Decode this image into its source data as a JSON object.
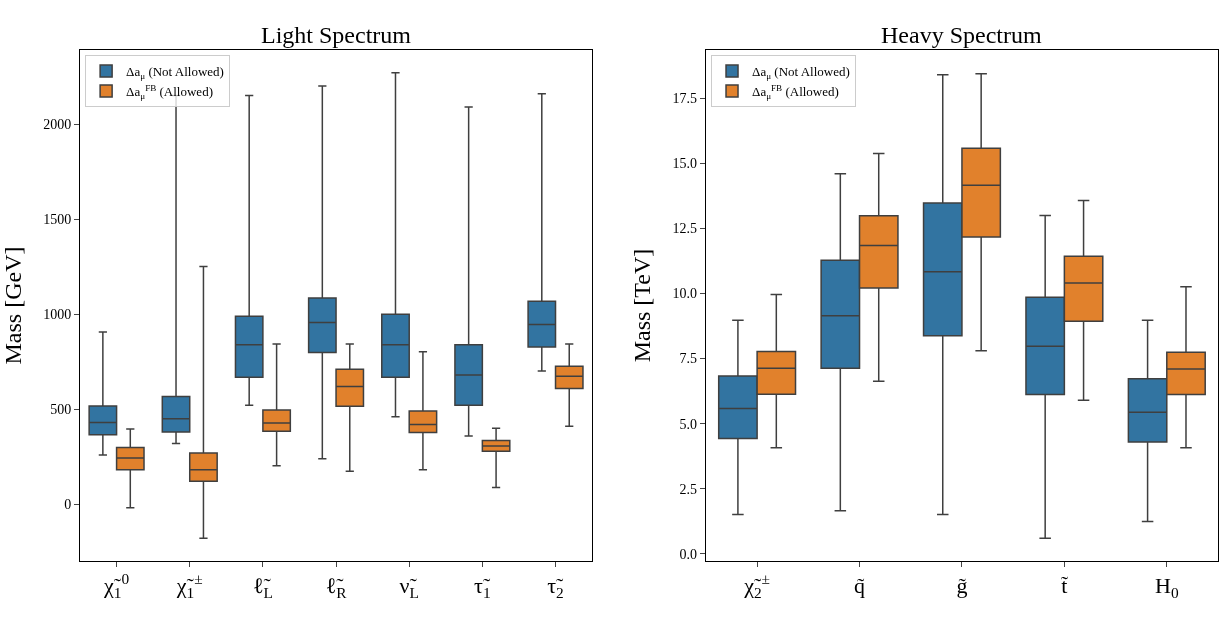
{
  "chart_data": [
    {
      "type": "box",
      "title": "Light Spectrum",
      "ylabel": "Mass [GeV]",
      "legend": "top left",
      "categories": [
        "χ̃$_{1}$$^{0}$",
        "χ̃$_{1}$$^{±}$",
        "ℓ̃$_{L}$",
        "ℓ̃$_{R}$",
        "ν̃$_{L}$",
        "τ̃$_{1}$",
        "τ̃$_{2}$"
      ],
      "ylim": [
        -300,
        2390
      ],
      "yticks": [
        0,
        500,
        1000,
        1500,
        2000
      ],
      "series": [
        {
          "name": "Δa$_{μ}$ (Not Allowed)",
          "color": "#3274a1",
          "boxes": [
            {
              "low": 258,
              "q1": 365,
              "median": 429,
              "q3": 516,
              "high": 906
            },
            {
              "low": 318,
              "q1": 379,
              "median": 449,
              "q3": 566,
              "high": 2150
            },
            {
              "low": 520,
              "q1": 667,
              "median": 838,
              "q3": 989,
              "high": 2150
            },
            {
              "low": 238,
              "q1": 798,
              "median": 955,
              "q3": 1084,
              "high": 2200
            },
            {
              "low": 459,
              "q1": 667,
              "median": 838,
              "q3": 999,
              "high": 2270
            },
            {
              "low": 358,
              "q1": 520,
              "median": 679,
              "q3": 838,
              "high": 2090
            },
            {
              "low": 700,
              "q1": 826,
              "median": 945,
              "q3": 1067,
              "high": 2160
            }
          ]
        },
        {
          "name": "Δa$_{μ}$$^{FB}$ (Allowed)",
          "color": "#e1812c",
          "boxes": [
            {
              "low": -20,
              "q1": 181,
              "median": 242,
              "q3": 298,
              "high": 395
            },
            {
              "low": -180,
              "q1": 120,
              "median": 181,
              "q3": 268,
              "high": 1250
            },
            {
              "low": 201,
              "q1": 383,
              "median": 427,
              "q3": 495,
              "high": 842
            },
            {
              "low": 173,
              "q1": 514,
              "median": 618,
              "q3": 709,
              "high": 842
            },
            {
              "low": 181,
              "q1": 377,
              "median": 419,
              "q3": 489,
              "high": 802
            },
            {
              "low": 87,
              "q1": 278,
              "median": 306,
              "q3": 334,
              "high": 399
            },
            {
              "low": 409,
              "q1": 608,
              "median": 673,
              "q3": 725,
              "high": 842
            }
          ]
        }
      ]
    },
    {
      "type": "box",
      "title": "Heavy Spectrum",
      "ylabel": "Mass [TeV]",
      "legend": "top left",
      "categories": [
        "χ̃$_{2}$$^{±}$",
        "q̃",
        "g̃",
        "t̃",
        "H$_{0}$"
      ],
      "ylim": [
        -0.28,
        19.36
      ],
      "yticks": [
        {
          "value": 0,
          "label": "0.0"
        },
        2.5,
        {
          "value": 5,
          "label": "5.0"
        },
        7.5,
        {
          "value": 10,
          "label": "10.0"
        },
        12.5,
        {
          "value": 15,
          "label": "15.0"
        },
        17.5
      ],
      "series": [
        {
          "name": "Δa$_{μ}$ (Not Allowed)",
          "color": "#3274a1",
          "boxes": [
            {
              "low": 1.51,
              "q1": 4.43,
              "median": 5.58,
              "q3": 6.83,
              "high": 8.97
            },
            {
              "low": 1.65,
              "q1": 7.13,
              "median": 9.15,
              "q3": 11.28,
              "high": 14.6
            },
            {
              "low": 1.51,
              "q1": 8.38,
              "median": 10.84,
              "q3": 13.48,
              "high": 18.41
            },
            {
              "low": 0.59,
              "q1": 6.12,
              "median": 7.97,
              "q3": 9.86,
              "high": 13.0
            },
            {
              "low": 1.24,
              "q1": 4.29,
              "median": 5.44,
              "q3": 6.72,
              "high": 8.97
            }
          ]
        },
        {
          "name": "Δa$_{μ}$$^{FB}$ (Allowed)",
          "color": "#e1812c",
          "boxes": [
            {
              "low": 4.07,
              "q1": 6.13,
              "median": 7.13,
              "q3": 7.77,
              "high": 9.96
            },
            {
              "low": 6.63,
              "q1": 10.21,
              "median": 11.85,
              "q3": 12.99,
              "high": 15.38
            },
            {
              "low": 7.8,
              "q1": 12.17,
              "median": 14.16,
              "q3": 15.58,
              "high": 18.45
            },
            {
              "low": 5.9,
              "q1": 8.93,
              "median": 10.4,
              "q3": 11.43,
              "high": 13.58
            },
            {
              "low": 4.07,
              "q1": 6.12,
              "median": 7.1,
              "q3": 7.74,
              "high": 10.26
            }
          ]
        }
      ]
    }
  ]
}
